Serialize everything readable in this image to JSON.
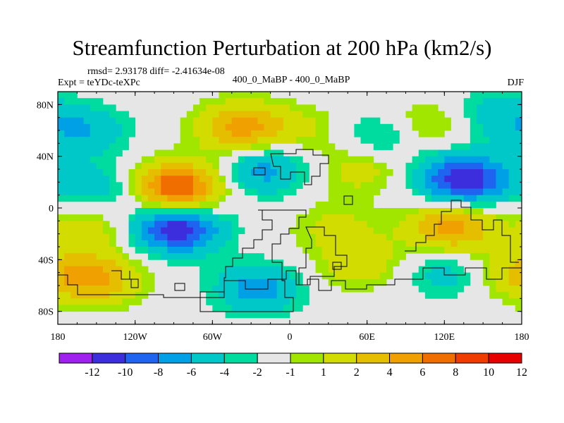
{
  "chart_data": {
    "type": "heatmap",
    "title": "Streamfunction Perturbation at 200 hPa (km2/s)",
    "subtitle_left_line1": "rmsd= 2.93178 diff= -2.41634e-08",
    "subtitle_left_line2": "Expt = teYDc-teXPc",
    "subtitle_center": "400_0_MaBP - 400_0_MaBP",
    "subtitle_right": "DJF",
    "x_ticks": [
      "180",
      "120W",
      "60W",
      "0",
      "60E",
      "120E",
      "180"
    ],
    "x_tick_values": [
      -180,
      -120,
      -60,
      0,
      60,
      120,
      180
    ],
    "y_ticks": [
      "80N",
      "40N",
      "0",
      "40S",
      "80S"
    ],
    "y_tick_values": [
      80,
      40,
      0,
      -40,
      -80
    ],
    "xlim": [
      -180,
      180
    ],
    "ylim": [
      -90,
      90
    ],
    "levels": [
      -12,
      -10,
      -8,
      -6,
      -4,
      -2,
      -1,
      1,
      2,
      4,
      6,
      8,
      10,
      12
    ],
    "colorbar_labels": [
      "-12",
      "-10",
      "-8",
      "-6",
      "-4",
      "-2",
      "-1",
      "1",
      "2",
      "4",
      "6",
      "8",
      "10",
      "12"
    ],
    "colors": [
      "#a020f0",
      "#3c2edc",
      "#1e64f0",
      "#00a0e6",
      "#00c8c8",
      "#00dca0",
      "#e6e6e6",
      "#a0e600",
      "#d2dc00",
      "#e6be00",
      "#f0a000",
      "#f06e00",
      "#f03c00",
      "#e60000"
    ],
    "anomaly_centers": [
      {
        "lon": -37,
        "lat": 62,
        "amp": 7.0
      },
      {
        "lon": -88,
        "lat": 15,
        "amp": 11.0
      },
      {
        "lon": -88,
        "lat": -15,
        "amp": -10.0
      },
      {
        "lon": -20,
        "lat": 30,
        "amp": -5.0
      },
      {
        "lon": 135,
        "lat": 22,
        "amp": -10.0
      },
      {
        "lon": 125,
        "lat": -15,
        "amp": 7.0
      },
      {
        "lon": 55,
        "lat": 30,
        "amp": 3.0
      },
      {
        "lon": -150,
        "lat": -55,
        "amp": 6.0
      },
      {
        "lon": -160,
        "lat": 60,
        "amp": -4.0
      },
      {
        "lon": -25,
        "lat": -62,
        "amp": -5.0
      },
      {
        "lon": 55,
        "lat": -43,
        "amp": 3.5
      },
      {
        "lon": 35,
        "lat": -15,
        "amp": 2.5
      },
      {
        "lon": 70,
        "lat": 55,
        "amp": -3.0
      },
      {
        "lon": 110,
        "lat": 65,
        "amp": 3.0
      },
      {
        "lon": 155,
        "lat": 72,
        "amp": -3.0
      },
      {
        "lon": -145,
        "lat": 15,
        "amp": -3.5
      },
      {
        "lon": -155,
        "lat": -15,
        "amp": 3.0
      },
      {
        "lon": 120,
        "lat": -50,
        "amp": -3.0
      },
      {
        "lon": 175,
        "lat": -50,
        "amp": 3.0
      },
      {
        "lon": 15,
        "lat": 60,
        "amp": 2.0
      }
    ]
  }
}
